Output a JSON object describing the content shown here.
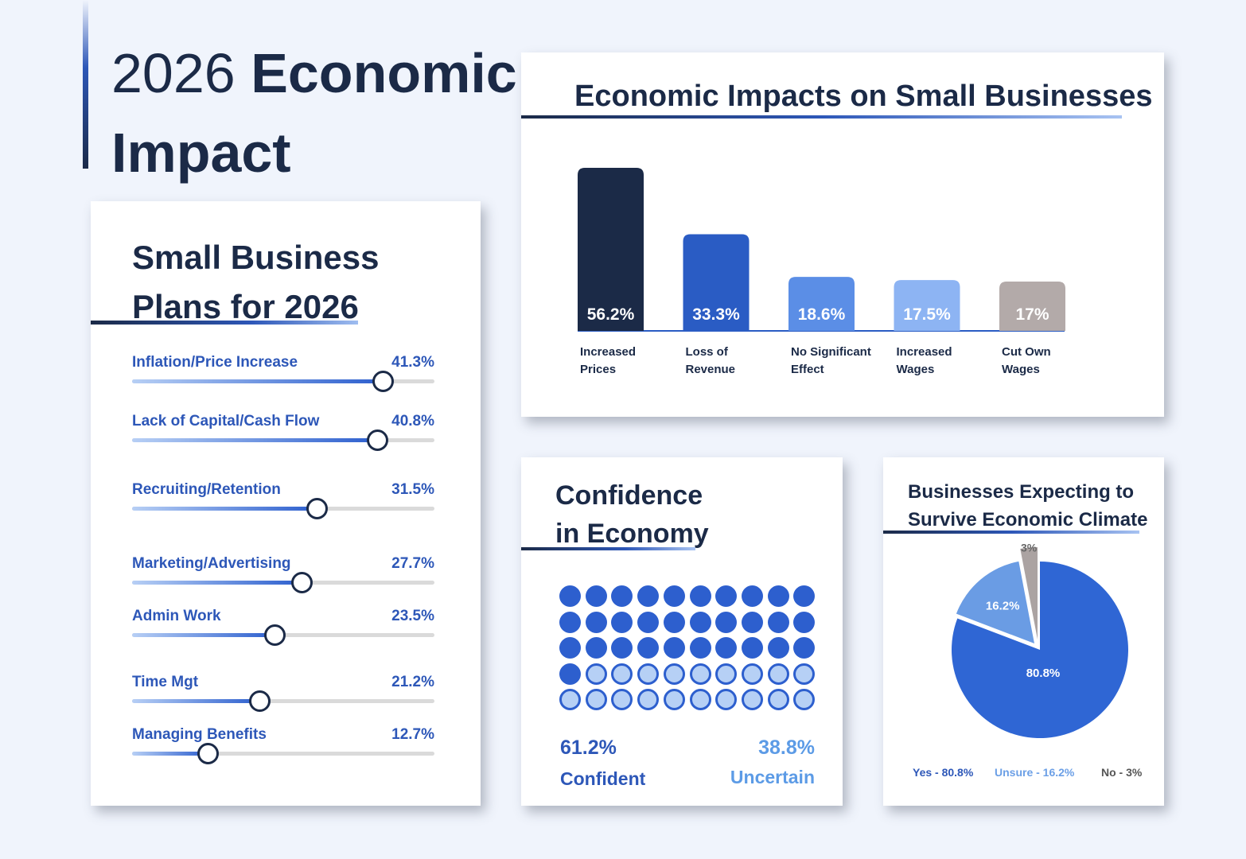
{
  "page": {
    "title_light": "2026",
    "title_bold": "Economic Impact"
  },
  "plans": {
    "title_line1": "Small Business",
    "title_line2": "Plans for 2026",
    "items": [
      {
        "label": "Inflation/Price Increase",
        "value": "41.3%",
        "level": 0.83
      },
      {
        "label": "Lack of Capital/Cash Flow",
        "value": "40.8%",
        "level": 0.81
      },
      {
        "label": "Recruiting/Retention",
        "value": "31.5%",
        "level": 0.61
      },
      {
        "label": "Marketing/Advertising",
        "value": "27.7%",
        "level": 0.56
      },
      {
        "label": "Admin Work",
        "value": "23.5%",
        "level": 0.47
      },
      {
        "label": "Time Mgt",
        "value": "21.2%",
        "level": 0.42
      },
      {
        "label": "Managing Benefits",
        "value": "12.7%",
        "level": 0.25
      }
    ]
  },
  "impacts": {
    "title_bold": "Economic Impacts",
    "title_light": "on Small Businesses"
  },
  "confidence": {
    "title_line1": "Confidence",
    "title_in": "in",
    "title_bold": "Economy",
    "confident_pct": "61.2%",
    "confident_label": "Confident",
    "uncertain_pct": "38.8%",
    "uncertain_label": "Uncertain",
    "filled_dots": 31,
    "total_dots": 50
  },
  "survive": {
    "title_line1": "Businesses Expecting to",
    "title_line2": "Survive Economic Climate",
    "legend_yes": "Yes - 80.8%",
    "legend_unsure": "Unsure - 16.2%",
    "legend_no": "No - 3%"
  },
  "chart_data": [
    {
      "type": "bar",
      "title": "Economic Impacts on Small Businesses",
      "categories": [
        "Increased Prices",
        "Loss of Revenue",
        "No Significant Effect",
        "Increased Wages",
        "Cut Own Wages"
      ],
      "category_lines": [
        [
          "Increased",
          "Prices"
        ],
        [
          "Loss of",
          "Revenue"
        ],
        [
          "No Significant",
          "Effect"
        ],
        [
          "Increased",
          "Wages"
        ],
        [
          "Cut Own",
          "Wages"
        ]
      ],
      "values": [
        56.2,
        33.3,
        18.6,
        17.5,
        17
      ],
      "value_labels": [
        "56.2%",
        "33.3%",
        "18.6%",
        "17.5%",
        "17%"
      ],
      "colors": [
        "#1b2a47",
        "#2a5cc4",
        "#5b8ee6",
        "#8db4f3",
        "#b3aaa9"
      ],
      "unit": "%"
    },
    {
      "type": "pie",
      "title": "Businesses Expecting to Survive Economic Climate",
      "labels": [
        "Yes",
        "Unsure",
        "No"
      ],
      "values": [
        80.8,
        16.2,
        3
      ],
      "value_labels": [
        "80.8%",
        "16.2%",
        "3%"
      ],
      "colors": [
        "#2f66d4",
        "#6a9ce4",
        "#aba3a2"
      ]
    }
  ]
}
